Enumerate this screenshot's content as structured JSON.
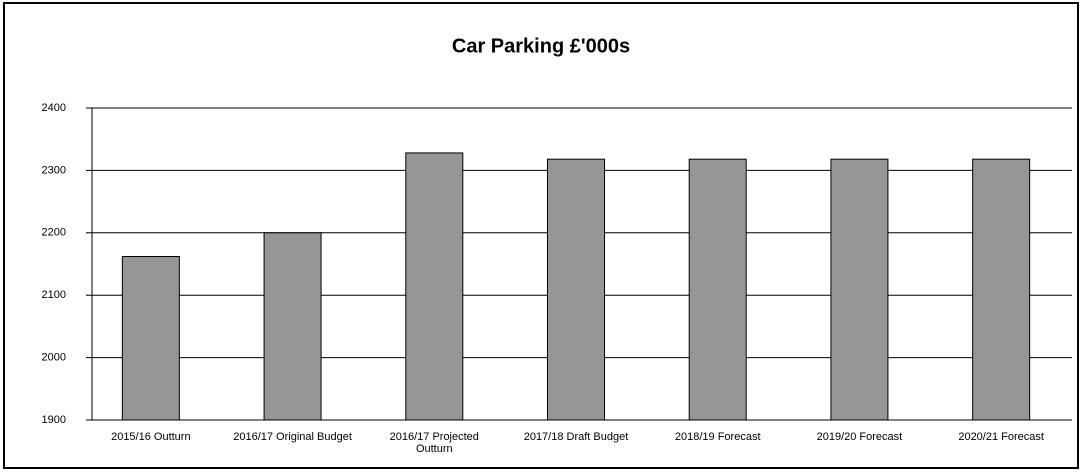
{
  "chart_data": {
    "type": "bar",
    "title": "Car Parking £'000s",
    "categories": [
      "2015/16 Outturn",
      "2016/17 Original Budget",
      "2016/17 Projected Outturn",
      "2017/18 Draft Budget",
      "2018/19 Forecast",
      "2019/20 Forecast",
      "2020/21 Forecast"
    ],
    "values": [
      2162,
      2200,
      2328,
      2318,
      2318,
      2318,
      2318
    ],
    "color": "#969696",
    "ylim": [
      1900,
      2400
    ],
    "yticks": [
      1900,
      2000,
      2100,
      2200,
      2300,
      2400
    ],
    "grid": true
  }
}
